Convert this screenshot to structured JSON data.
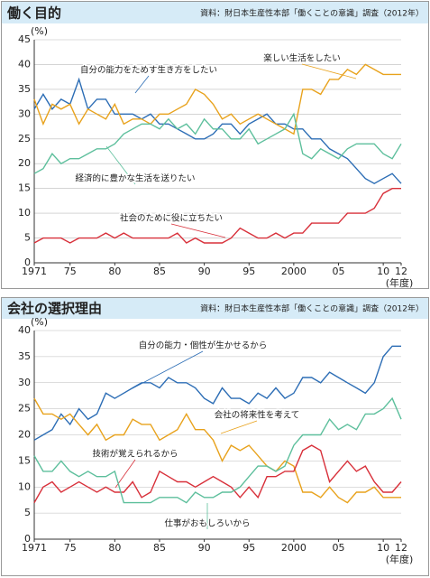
{
  "chart_data": [
    {
      "type": "line",
      "title": "働く目的",
      "source": "資料：財日本生産性本部「働くことの意識」調査（2012年）",
      "y_label": "(%)",
      "x_label": "(年度)",
      "x": [
        1971,
        1972,
        1973,
        1974,
        1975,
        1976,
        1977,
        1978,
        1979,
        1980,
        1981,
        1982,
        1983,
        1984,
        1985,
        1986,
        1987,
        1988,
        1989,
        1990,
        1991,
        1992,
        1993,
        1994,
        1995,
        1996,
        1997,
        1998,
        1999,
        2000,
        2001,
        2002,
        2003,
        2004,
        2005,
        2006,
        2007,
        2008,
        2009,
        2010,
        2011,
        2012
      ],
      "xlim": [
        1971,
        2012
      ],
      "xticks": [
        1971,
        {
          "value": 1975,
          "label": "75"
        },
        {
          "value": 1980,
          "label": "80"
        },
        {
          "value": 1985,
          "label": "85"
        },
        {
          "value": 1990,
          "label": "90"
        },
        {
          "value": 1995,
          "label": "95"
        },
        2000,
        {
          "value": 2005,
          "label": "05"
        },
        {
          "value": 2010,
          "label": "10"
        },
        {
          "value": 2012,
          "label": "12"
        }
      ],
      "ylim": [
        0,
        45
      ],
      "yticks": [
        0,
        5,
        10,
        15,
        20,
        25,
        30,
        35,
        40,
        45
      ],
      "grid": true,
      "series": [
        {
          "name": "自分の能力をためす生き方をしたい",
          "color": "#2c6db5",
          "values": [
            31,
            34,
            31,
            33,
            32,
            37,
            31,
            33,
            33,
            30,
            30,
            30,
            29,
            30,
            28,
            28,
            27,
            26,
            25,
            25,
            26,
            28,
            28,
            26,
            28,
            29,
            30,
            28,
            28,
            27,
            27,
            25,
            25,
            23,
            22,
            21,
            19,
            17,
            16,
            17,
            18,
            16
          ]
        },
        {
          "name": "楽しい生活をしたい",
          "color": "#e8a21c",
          "values": [
            33,
            28,
            32,
            31,
            32,
            28,
            31,
            30,
            29,
            32,
            28,
            29,
            29,
            28,
            30,
            30,
            31,
            32,
            35,
            34,
            32,
            29,
            30,
            28,
            29,
            30,
            29,
            28,
            27,
            26,
            35,
            35,
            34,
            37,
            37,
            39,
            38,
            40,
            39,
            38,
            38,
            38
          ]
        },
        {
          "name": "経済的に豊かな生活を送りたい",
          "color": "#5dbf9c",
          "values": [
            18,
            19,
            22,
            20,
            21,
            21,
            22,
            23,
            23,
            24,
            26,
            27,
            28,
            28,
            27,
            29,
            27,
            28,
            26,
            29,
            27,
            27,
            25,
            25,
            27,
            24,
            25,
            26,
            27,
            30,
            22,
            21,
            23,
            22,
            21,
            23,
            24,
            24,
            24,
            22,
            21,
            24
          ]
        },
        {
          "name": "社会のために役に立ちたい",
          "color": "#d8303a",
          "values": [
            4,
            5,
            5,
            5,
            4,
            5,
            5,
            5,
            6,
            5,
            6,
            5,
            5,
            5,
            5,
            5,
            6,
            4,
            5,
            4,
            4,
            4,
            5,
            7,
            6,
            5,
            5,
            6,
            5,
            6,
            6,
            8,
            8,
            8,
            8,
            10,
            10,
            10,
            11,
            14,
            15,
            15
          ]
        }
      ]
    },
    {
      "type": "line",
      "title": "会社の選択理由",
      "source": "資料：財日本生産性本部「働くことの意識」調査（2012年）",
      "y_label": "(%)",
      "x_label": "(年度)",
      "x": [
        1971,
        1972,
        1973,
        1974,
        1975,
        1976,
        1977,
        1978,
        1979,
        1980,
        1981,
        1982,
        1983,
        1984,
        1985,
        1986,
        1987,
        1988,
        1989,
        1990,
        1991,
        1992,
        1993,
        1994,
        1995,
        1996,
        1997,
        1998,
        1999,
        2000,
        2001,
        2002,
        2003,
        2004,
        2005,
        2006,
        2007,
        2008,
        2009,
        2010,
        2011,
        2012
      ],
      "xlim": [
        1971,
        2012
      ],
      "xticks": [
        1971,
        {
          "value": 1975,
          "label": "75"
        },
        {
          "value": 1980,
          "label": "80"
        },
        {
          "value": 1985,
          "label": "85"
        },
        {
          "value": 1990,
          "label": "90"
        },
        {
          "value": 1995,
          "label": "95"
        },
        2000,
        {
          "value": 2005,
          "label": "05"
        },
        {
          "value": 2010,
          "label": "10"
        },
        {
          "value": 2012,
          "label": "12"
        }
      ],
      "ylim": [
        0,
        40
      ],
      "yticks": [
        0,
        5,
        10,
        15,
        20,
        25,
        30,
        35,
        40
      ],
      "grid": true,
      "series": [
        {
          "name": "自分の能力・個性が生かせるから",
          "color": "#2c6db5",
          "values": [
            19,
            20,
            21,
            24,
            22,
            25,
            23,
            24,
            28,
            27,
            28,
            29,
            30,
            30,
            29,
            31,
            30,
            30,
            29,
            27,
            26,
            29,
            27,
            27,
            26,
            28,
            27,
            29,
            27,
            28,
            31,
            31,
            30,
            32,
            31,
            30,
            29,
            28,
            30,
            35,
            37,
            37
          ]
        },
        {
          "name": "会社の将来性を考えて",
          "color": "#e8a21c",
          "values": [
            27,
            24,
            24,
            23,
            24,
            22,
            20,
            22,
            19,
            20,
            20,
            23,
            22,
            22,
            19,
            20,
            21,
            24,
            21,
            21,
            19,
            15,
            18,
            17,
            18,
            16,
            14,
            13,
            15,
            14,
            9,
            9,
            8,
            10,
            8,
            7,
            9,
            9,
            10,
            8,
            8,
            8
          ]
        },
        {
          "name": "技術が覚えられるから",
          "color": "#d8303a",
          "values": [
            7,
            10,
            11,
            9,
            10,
            11,
            10,
            9,
            10,
            9,
            9,
            11,
            8,
            9,
            13,
            12,
            11,
            11,
            10,
            11,
            12,
            11,
            10,
            8,
            10,
            8,
            12,
            12,
            13,
            13,
            17,
            18,
            17,
            11,
            13,
            15,
            13,
            14,
            11,
            9,
            9,
            11
          ]
        },
        {
          "name": "仕事がおもしろいから",
          "color": "#5dbf9c",
          "values": [
            16,
            13,
            13,
            15,
            13,
            12,
            13,
            12,
            12,
            13,
            7,
            7,
            7,
            7,
            8,
            8,
            8,
            7,
            9,
            8,
            8,
            9,
            9,
            10,
            12,
            14,
            14,
            13,
            14,
            18,
            20,
            20,
            20,
            23,
            21,
            22,
            21,
            24,
            24,
            25,
            27,
            23
          ]
        }
      ]
    }
  ]
}
